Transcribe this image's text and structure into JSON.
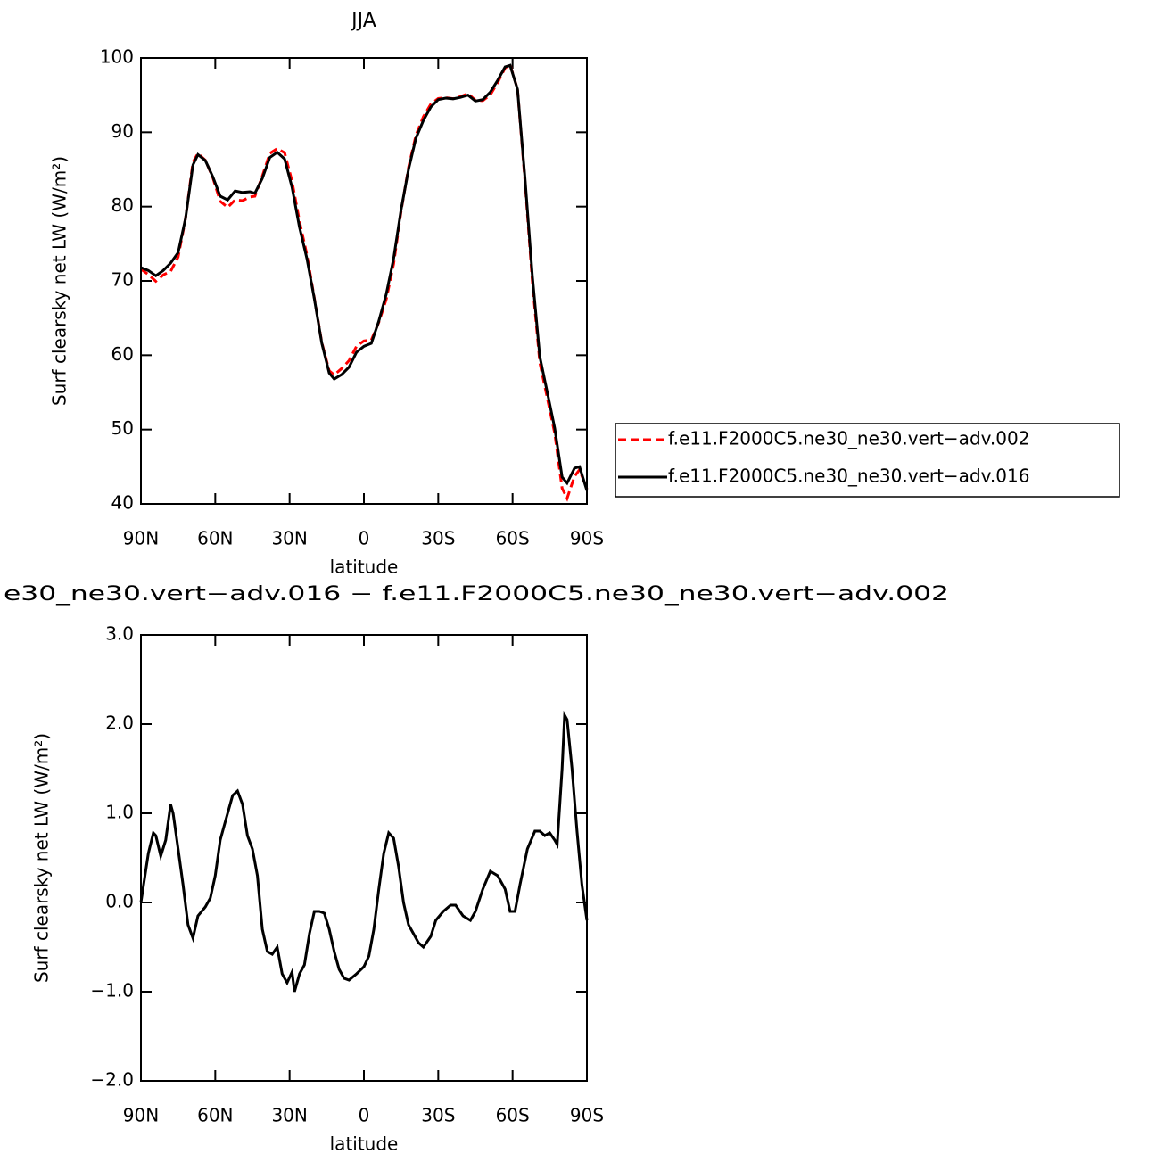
{
  "chart_data": [
    {
      "type": "line",
      "title": "JJA",
      "xlabel": "latitude",
      "ylabel": "Surf clearsky net LW (W/m²)",
      "x": [
        90,
        87,
        84,
        81,
        78,
        75,
        72,
        69,
        67,
        64,
        61,
        58,
        55,
        52,
        49,
        46,
        44,
        41,
        38,
        35,
        32,
        29,
        26,
        23,
        20,
        17,
        14,
        12,
        9,
        6,
        3,
        0,
        -3,
        -6,
        -9,
        -12,
        -15,
        -18,
        -21,
        -24,
        -27,
        -30,
        -33,
        -36,
        -39,
        -42,
        -45,
        -48,
        -51,
        -54,
        -57,
        -59,
        -62,
        -65,
        -68,
        -71,
        -74,
        -77,
        -80,
        -82,
        -85,
        -87,
        -90
      ],
      "series": [
        {
          "name": "f.e11.F2000C5.ne30_ne30.vert−adv.002",
          "color": "#ff0000",
          "dash": "dashed",
          "values": [
            71.6,
            70.85,
            69.95,
            70.8,
            71.3,
            73.2,
            78.4,
            86.0,
            87.15,
            86.25,
            83.9,
            80.7,
            79.9,
            80.9,
            80.8,
            81.3,
            81.4,
            84.1,
            87.15,
            87.8,
            87.25,
            83.4,
            78.0,
            73.5,
            67.7,
            61.7,
            57.9,
            57.35,
            58.2,
            59.27,
            61.2,
            61.92,
            62.05,
            64.45,
            67.5,
            72.28,
            79.4,
            85.25,
            89.6,
            92.1,
            93.78,
            94.55,
            94.65,
            94.53,
            94.8,
            95.2,
            94.3,
            94.25,
            95.05,
            96.7,
            98.65,
            99.1,
            95.8,
            83.4,
            69.85,
            59.0,
            54.23,
            49.5,
            42.1,
            40.75,
            43.7,
            44.6,
            42.0
          ]
        },
        {
          "name": "f.e11.F2000C5.ne30_ne30.vert−adv.016",
          "color": "#000000",
          "dash": "solid",
          "values": [
            71.8,
            71.4,
            70.7,
            71.4,
            72.4,
            73.8,
            78.4,
            85.6,
            87.0,
            86.2,
            84.0,
            81.4,
            80.9,
            82.1,
            81.9,
            82.0,
            81.8,
            83.8,
            86.6,
            87.3,
            86.4,
            82.6,
            77.2,
            73.0,
            67.6,
            61.6,
            57.6,
            56.8,
            57.4,
            58.4,
            60.4,
            61.2,
            61.6,
            64.6,
            68.2,
            73.0,
            79.6,
            85.0,
            89.2,
            91.6,
            93.4,
            94.4,
            94.6,
            94.5,
            94.7,
            95.0,
            94.2,
            94.4,
            95.4,
            97.0,
            98.8,
            99.0,
            95.8,
            83.8,
            70.6,
            59.8,
            55.0,
            50.2,
            43.6,
            42.8,
            44.8,
            45.0,
            41.8
          ]
        }
      ],
      "xlim": [
        90,
        -90
      ],
      "xticks": [
        {
          "value": 90,
          "label": "90N"
        },
        {
          "value": 60,
          "label": "60N"
        },
        {
          "value": 30,
          "label": "30N"
        },
        0,
        {
          "value": -30,
          "label": "30S"
        },
        {
          "value": -60,
          "label": "60S"
        },
        {
          "value": -90,
          "label": "90S"
        }
      ],
      "ylim": [
        40,
        100
      ],
      "yticks": [
        40,
        50,
        60,
        70,
        80,
        90,
        100
      ],
      "legend": "outside right"
    },
    {
      "type": "line",
      "title": "e30_ne30.vert−adv.016 − f.e11.F2000C5.ne30_ne30.vert−adv.002",
      "xlabel": "latitude",
      "ylabel": "Surf clearsky net LW (W/m²)",
      "x": [
        90,
        87,
        85,
        84,
        82,
        80,
        78,
        77,
        75,
        73,
        71,
        69,
        67,
        64,
        62,
        60,
        58,
        56,
        53,
        51,
        49,
        47,
        45,
        43,
        41,
        39,
        37,
        35,
        33,
        31,
        29,
        28,
        26,
        24,
        22,
        20,
        18,
        16,
        14,
        12,
        10,
        8,
        6,
        3,
        0,
        -2,
        -4,
        -6,
        -8,
        -10,
        -12,
        -14,
        -16,
        -18,
        -20,
        -22,
        -24,
        -27,
        -29,
        -32,
        -35,
        -37,
        -40,
        -43,
        -45,
        -48,
        -51,
        -54,
        -57,
        -59,
        -61,
        -63,
        -66,
        -69,
        -71,
        -73,
        -75,
        -77,
        -78,
        -80,
        -81,
        -82,
        -84,
        -86,
        -88,
        -90
      ],
      "color": "#000000",
      "values": [
        0.0,
        0.55,
        0.78,
        0.75,
        0.52,
        0.7,
        1.1,
        1.0,
        0.6,
        0.2,
        -0.25,
        -0.4,
        -0.15,
        -0.05,
        0.05,
        0.3,
        0.7,
        0.9,
        1.2,
        1.25,
        1.1,
        0.75,
        0.6,
        0.3,
        -0.3,
        -0.55,
        -0.58,
        -0.5,
        -0.8,
        -0.9,
        -0.78,
        -1.0,
        -0.8,
        -0.7,
        -0.35,
        -0.1,
        -0.1,
        -0.12,
        -0.3,
        -0.55,
        -0.75,
        -0.85,
        -0.87,
        -0.8,
        -0.72,
        -0.6,
        -0.3,
        0.15,
        0.55,
        0.78,
        0.72,
        0.4,
        0.0,
        -0.25,
        -0.35,
        -0.45,
        -0.5,
        -0.38,
        -0.2,
        -0.1,
        -0.03,
        -0.03,
        -0.15,
        -0.2,
        -0.1,
        0.15,
        0.35,
        0.3,
        0.15,
        -0.1,
        -0.1,
        0.2,
        0.6,
        0.8,
        0.8,
        0.75,
        0.78,
        0.7,
        0.65,
        1.5,
        2.1,
        2.05,
        1.5,
        0.8,
        0.2,
        -0.2
      ],
      "xlim": [
        90,
        -90
      ],
      "xticks": [
        {
          "value": 90,
          "label": "90N"
        },
        {
          "value": 60,
          "label": "60N"
        },
        {
          "value": 30,
          "label": "30N"
        },
        0,
        {
          "value": -30,
          "label": "30S"
        },
        {
          "value": -60,
          "label": "60S"
        },
        {
          "value": -90,
          "label": "90S"
        }
      ],
      "ylim": [
        -2,
        3
      ],
      "yticks": [
        {
          "value": -2,
          "label": "−2.0"
        },
        {
          "value": -1,
          "label": "−1.0"
        },
        {
          "value": 0,
          "label": "0.0"
        },
        {
          "value": 1,
          "label": "1.0"
        },
        {
          "value": 2,
          "label": "2.0"
        },
        {
          "value": 3,
          "label": "3.0"
        }
      ]
    }
  ]
}
